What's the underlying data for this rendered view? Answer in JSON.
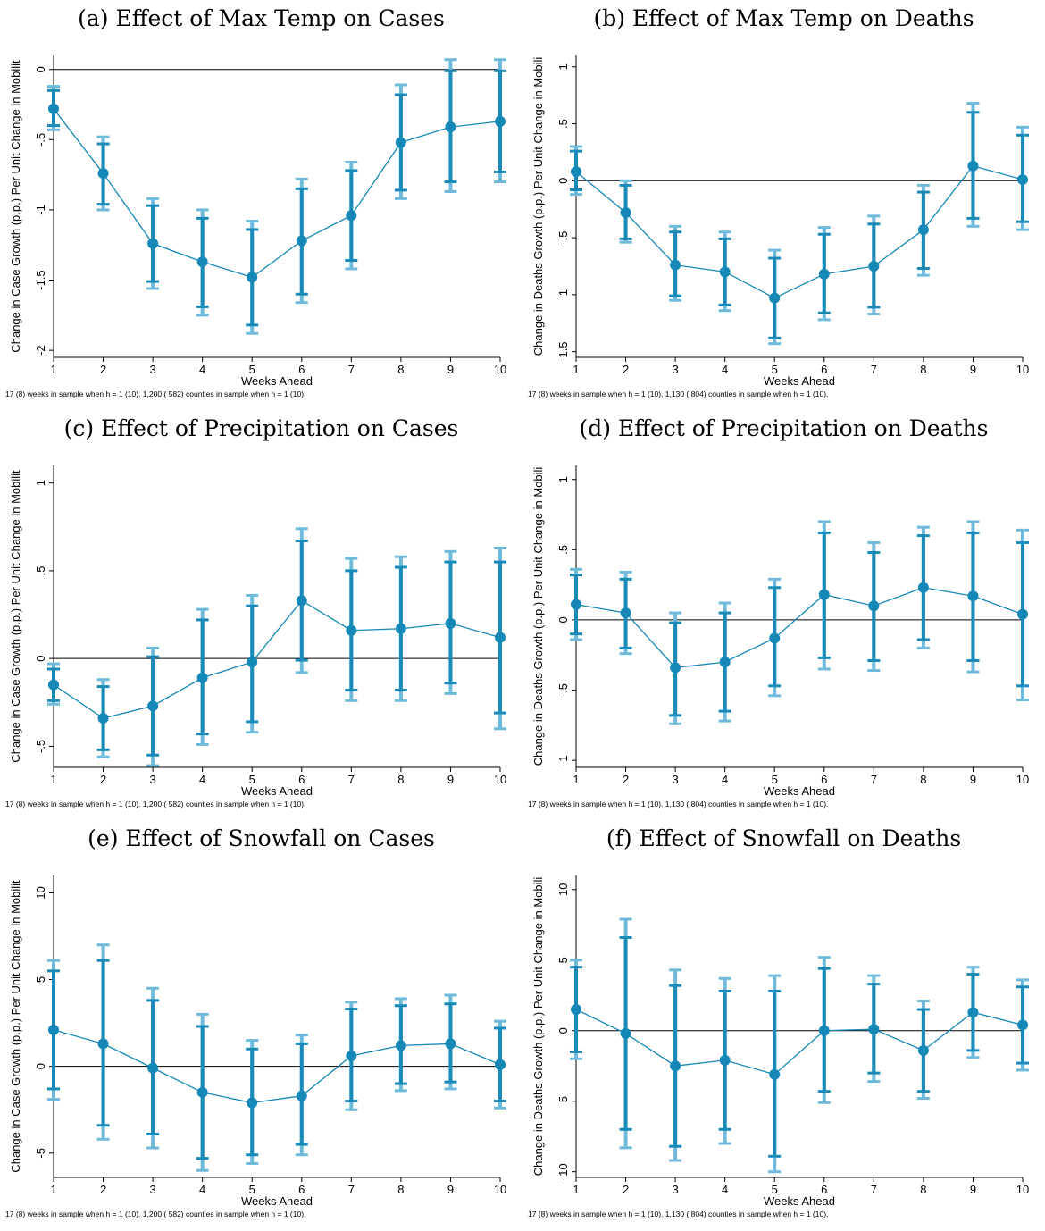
{
  "colors": {
    "point": "#1588b8",
    "ci95": "#6fbadb",
    "ci90": "#1a8ab8",
    "zero_line": "#000000"
  },
  "chart_data": [
    {
      "id": "a",
      "type": "scatter",
      "title": "(a) Effect of Max Temp on Cases",
      "xlabel": "Weeks Ahead",
      "ylabel": "Change in Case Growth (p.p.) Per Unit Change in Mobilit",
      "note": "17 (8) weeks in sample when h = 1 (10). 1,200 (  582) counties in sample when h = 1 (10).",
      "x": [
        1,
        2,
        3,
        4,
        5,
        6,
        7,
        8,
        9,
        10
      ],
      "ylim": [
        -2.05,
        0.1
      ],
      "yticks": [
        0,
        -0.5,
        -1,
        -1.5,
        -2
      ],
      "ytick_labels": [
        "0",
        "-.5",
        "-1",
        "-1.5",
        "-2"
      ],
      "series": [
        {
          "estimate": [
            -0.28,
            -0.74,
            -1.24,
            -1.37,
            -1.48,
            -1.22,
            -1.04,
            -0.52,
            -0.41,
            -0.37
          ],
          "ci90_low": [
            -0.4,
            -0.96,
            -1.51,
            -1.69,
            -1.82,
            -1.6,
            -1.36,
            -0.86,
            -0.8,
            -0.73
          ],
          "ci90_high": [
            -0.15,
            -0.53,
            -0.97,
            -1.06,
            -1.14,
            -0.85,
            -0.72,
            -0.18,
            -0.01,
            -0.01
          ],
          "ci95_low": [
            -0.43,
            -1.0,
            -1.56,
            -1.75,
            -1.88,
            -1.66,
            -1.42,
            -0.92,
            -0.87,
            -0.8
          ],
          "ci95_high": [
            -0.12,
            -0.48,
            -0.92,
            -1.0,
            -1.08,
            -0.78,
            -0.66,
            -0.11,
            0.07,
            0.07
          ]
        }
      ]
    },
    {
      "id": "b",
      "type": "scatter",
      "title": "(b) Effect of Max Temp on Deaths",
      "xlabel": "Weeks Ahead",
      "ylabel": "Change in Deaths Growth (p.p.) Per Unit Change in Mobili",
      "note": "17 (8) weeks in sample when h = 1 (10). 1,130 (  804) counties in sample when h = 1 (10).",
      "x": [
        1,
        2,
        3,
        4,
        5,
        6,
        7,
        8,
        9,
        10
      ],
      "ylim": [
        -1.55,
        1.1
      ],
      "yticks": [
        1,
        0.5,
        0,
        -0.5,
        -1,
        -1.5
      ],
      "ytick_labels": [
        "1",
        ".5",
        "0",
        "-.5",
        "-1",
        "-1.5"
      ],
      "series": [
        {
          "estimate": [
            0.08,
            -0.28,
            -0.74,
            -0.8,
            -1.03,
            -0.82,
            -0.75,
            -0.43,
            0.13,
            0.01
          ],
          "ci90_low": [
            -0.08,
            -0.51,
            -1.01,
            -1.09,
            -1.38,
            -1.16,
            -1.11,
            -0.77,
            -0.33,
            -0.36
          ],
          "ci90_high": [
            0.26,
            -0.04,
            -0.45,
            -0.51,
            -0.68,
            -0.47,
            -0.38,
            -0.1,
            0.6,
            0.4
          ],
          "ci95_low": [
            -0.12,
            -0.54,
            -1.05,
            -1.14,
            -1.43,
            -1.22,
            -1.17,
            -0.83,
            -0.4,
            -0.43
          ],
          "ci95_high": [
            0.3,
            0.0,
            -0.4,
            -0.45,
            -0.61,
            -0.41,
            -0.31,
            -0.04,
            0.68,
            0.47
          ]
        }
      ]
    },
    {
      "id": "c",
      "type": "scatter",
      "title": "(c) Effect of Precipitation on Cases",
      "xlabel": "Weeks Ahead",
      "ylabel": "Change in Case Growth (p.p.) Per Unit Change in Mobilit",
      "note": "17 (8) weeks in sample when h = 1 (10). 1,200 (  582) counties in sample when h = 1 (10).",
      "x": [
        1,
        2,
        3,
        4,
        5,
        6,
        7,
        8,
        9,
        10
      ],
      "ylim": [
        -0.62,
        1.1
      ],
      "yticks": [
        1,
        0.5,
        0,
        -0.5
      ],
      "ytick_labels": [
        "1",
        ".5",
        "0",
        "-.5"
      ],
      "series": [
        {
          "estimate": [
            -0.15,
            -0.34,
            -0.27,
            -0.11,
            -0.02,
            0.33,
            0.16,
            0.17,
            0.2,
            0.12
          ],
          "ci90_low": [
            -0.24,
            -0.52,
            -0.55,
            -0.43,
            -0.36,
            -0.01,
            -0.18,
            -0.18,
            -0.14,
            -0.31
          ],
          "ci90_high": [
            -0.06,
            -0.16,
            0.01,
            0.22,
            0.3,
            0.67,
            0.5,
            0.52,
            0.55,
            0.55
          ],
          "ci95_low": [
            -0.26,
            -0.56,
            -0.61,
            -0.49,
            -0.42,
            -0.08,
            -0.24,
            -0.24,
            -0.2,
            -0.4
          ],
          "ci95_high": [
            -0.03,
            -0.12,
            0.06,
            0.28,
            0.36,
            0.74,
            0.57,
            0.58,
            0.61,
            0.63
          ]
        }
      ]
    },
    {
      "id": "d",
      "type": "scatter",
      "title": "(d) Effect of Precipitation on Deaths",
      "xlabel": "Weeks Ahead",
      "ylabel": "Change in Deaths Growth (p.p.) Per Unit Change in Mobili",
      "note": "17 (8) weeks in sample when h = 1 (10). 1,130 (  804) counties in sample when h = 1 (10).",
      "x": [
        1,
        2,
        3,
        4,
        5,
        6,
        7,
        8,
        9,
        10
      ],
      "ylim": [
        -1.05,
        1.1
      ],
      "yticks": [
        1,
        0.5,
        0,
        -0.5,
        -1
      ],
      "ytick_labels": [
        "1",
        ".5",
        "0",
        "-.5",
        "-1"
      ],
      "series": [
        {
          "estimate": [
            0.11,
            0.05,
            -0.34,
            -0.3,
            -0.13,
            0.18,
            0.1,
            0.23,
            0.17,
            0.04
          ],
          "ci90_low": [
            -0.1,
            -0.2,
            -0.68,
            -0.65,
            -0.47,
            -0.27,
            -0.29,
            -0.14,
            -0.29,
            -0.47
          ],
          "ci90_high": [
            0.32,
            0.29,
            -0.02,
            0.05,
            0.23,
            0.62,
            0.48,
            0.6,
            0.62,
            0.55
          ],
          "ci95_low": [
            -0.14,
            -0.24,
            -0.74,
            -0.72,
            -0.54,
            -0.35,
            -0.36,
            -0.2,
            -0.37,
            -0.57
          ],
          "ci95_high": [
            0.36,
            0.34,
            0.05,
            0.12,
            0.29,
            0.7,
            0.55,
            0.66,
            0.7,
            0.64
          ]
        }
      ]
    },
    {
      "id": "e",
      "type": "scatter",
      "title": "(e) Effect of Snowfall on Cases",
      "xlabel": "Weeks Ahead",
      "ylabel": "Change in Case Growth (p.p.) Per Unit Change in Mobilit",
      "note": "17 (8) weeks in sample when h = 1 (10). 1,200 (  582) counties in sample when h = 1 (10).",
      "x": [
        1,
        2,
        3,
        4,
        5,
        6,
        7,
        8,
        9,
        10
      ],
      "ylim": [
        -6.4,
        11.0
      ],
      "yticks": [
        10,
        5,
        0,
        -5
      ],
      "ytick_labels": [
        "10",
        "5",
        "0",
        "-5"
      ],
      "series": [
        {
          "estimate": [
            2.1,
            1.3,
            -0.1,
            -1.5,
            -2.1,
            -1.7,
            0.6,
            1.2,
            1.3,
            0.1
          ],
          "ci90_low": [
            -1.3,
            -3.4,
            -3.9,
            -5.3,
            -5.1,
            -4.5,
            -2.0,
            -1.0,
            -0.9,
            -2.0
          ],
          "ci90_high": [
            5.5,
            6.1,
            3.8,
            2.3,
            1.0,
            1.3,
            3.3,
            3.5,
            3.6,
            2.2
          ],
          "ci95_low": [
            -1.9,
            -4.2,
            -4.7,
            -6.0,
            -5.6,
            -5.1,
            -2.5,
            -1.4,
            -1.3,
            -2.4
          ],
          "ci95_high": [
            6.1,
            7.0,
            4.5,
            3.0,
            1.5,
            1.8,
            3.7,
            3.9,
            4.1,
            2.6
          ]
        }
      ]
    },
    {
      "id": "f",
      "type": "scatter",
      "title": "(f) Effect of Snowfall on Deaths",
      "xlabel": "Weeks Ahead",
      "ylabel": "Change in Deaths Growth (p.p.) Per Unit Change in Mobili",
      "note": "17 (8) weeks in sample when h = 1 (10). 1,130 (  804) counties in sample when h = 1 (10).",
      "x": [
        1,
        2,
        3,
        4,
        5,
        6,
        7,
        8,
        9,
        10
      ],
      "ylim": [
        -10.4,
        11.0
      ],
      "yticks": [
        10,
        5,
        0,
        -5,
        -10
      ],
      "ytick_labels": [
        "10",
        "5",
        "0",
        "-5",
        "-10"
      ],
      "series": [
        {
          "estimate": [
            1.5,
            -0.2,
            -2.5,
            -2.1,
            -3.1,
            0.0,
            0.1,
            -1.4,
            1.3,
            0.4
          ],
          "ci90_low": [
            -1.5,
            -7.0,
            -8.2,
            -7.0,
            -8.9,
            -4.3,
            -3.0,
            -4.3,
            -1.4,
            -2.3
          ],
          "ci90_high": [
            4.5,
            6.6,
            3.2,
            2.8,
            2.8,
            4.4,
            3.3,
            1.5,
            4.0,
            3.1
          ],
          "ci95_low": [
            -2.0,
            -8.3,
            -9.2,
            -8.0,
            -10.0,
            -5.1,
            -3.6,
            -4.8,
            -1.9,
            -2.8
          ],
          "ci95_high": [
            5.0,
            7.9,
            4.3,
            3.7,
            3.9,
            5.2,
            3.9,
            2.1,
            4.5,
            3.6
          ]
        }
      ]
    }
  ]
}
